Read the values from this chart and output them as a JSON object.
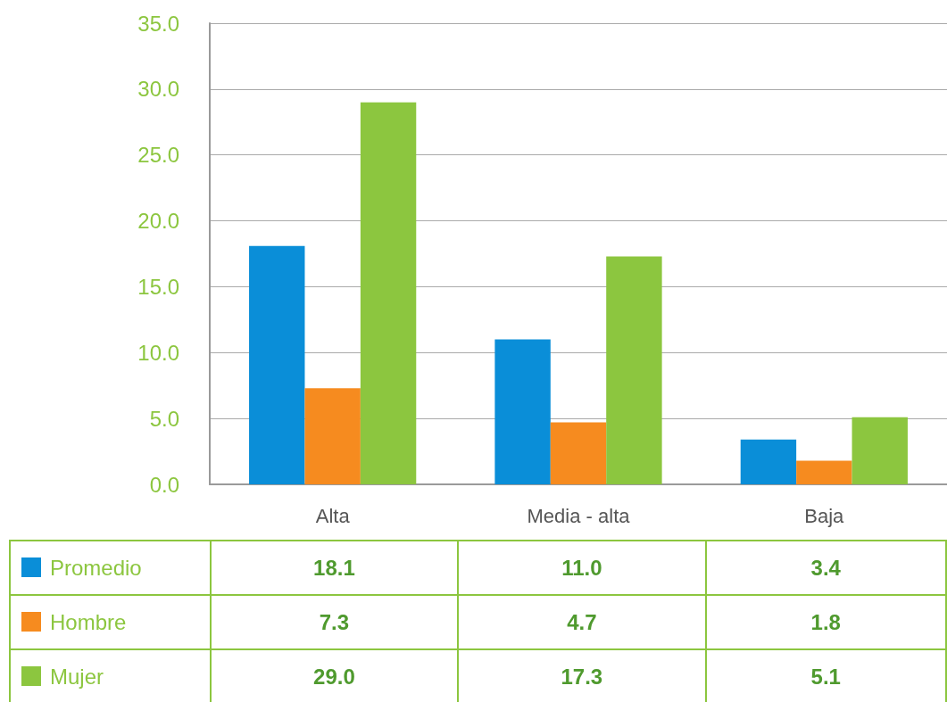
{
  "chart_data": {
    "type": "bar",
    "categories": [
      "Alta",
      "Media - alta",
      "Baja"
    ],
    "series": [
      {
        "name": "Promedio",
        "color": "#0a8ed8",
        "values": [
          18.1,
          11.0,
          3.4
        ],
        "value_labels": [
          "18.1",
          "11.0",
          "3.4"
        ]
      },
      {
        "name": "Hombre",
        "color": "#f68b1f",
        "values": [
          7.3,
          4.7,
          1.8
        ],
        "value_labels": [
          "7.3",
          "4.7",
          "1.8"
        ]
      },
      {
        "name": "Mujer",
        "color": "#8cc63f",
        "values": [
          29.0,
          17.3,
          5.1
        ],
        "value_labels": [
          "29.0",
          "17.3",
          "5.1"
        ]
      }
    ],
    "ylim": [
      0,
      35
    ],
    "yticks": [
      {
        "value": 0,
        "label": "0.0"
      },
      {
        "value": 5,
        "label": "5.0"
      },
      {
        "value": 10,
        "label": "10.0"
      },
      {
        "value": 15,
        "label": "15.0"
      },
      {
        "value": 20,
        "label": "20.0"
      },
      {
        "value": 25,
        "label": "25.0"
      },
      {
        "value": 30,
        "label": "30.0"
      },
      {
        "value": 35,
        "label": "35.0"
      }
    ],
    "grid": "y",
    "legend": "bottom"
  }
}
